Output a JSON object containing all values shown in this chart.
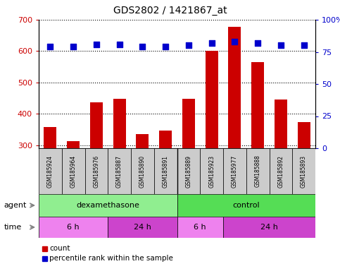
{
  "title": "GDS2802 / 1421867_at",
  "samples": [
    "GSM185924",
    "GSM185964",
    "GSM185976",
    "GSM185887",
    "GSM185890",
    "GSM185891",
    "GSM185889",
    "GSM185923",
    "GSM185977",
    "GSM185888",
    "GSM185892",
    "GSM185893"
  ],
  "counts": [
    357,
    312,
    437,
    447,
    335,
    347,
    447,
    600,
    678,
    565,
    445,
    373
  ],
  "percentile_ranks": [
    79,
    79,
    81,
    81,
    79,
    79,
    80,
    82,
    83,
    82,
    80,
    80
  ],
  "ylim_left": [
    290,
    700
  ],
  "ylim_right": [
    0,
    100
  ],
  "yticks_left": [
    300,
    400,
    500,
    600,
    700
  ],
  "yticks_right": [
    0,
    25,
    50,
    75,
    100
  ],
  "bar_color": "#CC0000",
  "dot_color": "#0000CC",
  "agent_groups": [
    {
      "label": "dexamethasone",
      "start": 0,
      "end": 6,
      "color": "#90EE90"
    },
    {
      "label": "control",
      "start": 6,
      "end": 12,
      "color": "#55DD55"
    }
  ],
  "time_groups": [
    {
      "label": "6 h",
      "start": 0,
      "end": 3,
      "color": "#EE82EE"
    },
    {
      "label": "24 h",
      "start": 3,
      "end": 6,
      "color": "#CC44CC"
    },
    {
      "label": "6 h",
      "start": 6,
      "end": 8,
      "color": "#EE82EE"
    },
    {
      "label": "24 h",
      "start": 8,
      "end": 12,
      "color": "#CC44CC"
    }
  ],
  "bg_color": "#FFFFFF",
  "tick_label_bg": "#CCCCCC",
  "bar_bottom": 290,
  "pct_dot_size": 28
}
